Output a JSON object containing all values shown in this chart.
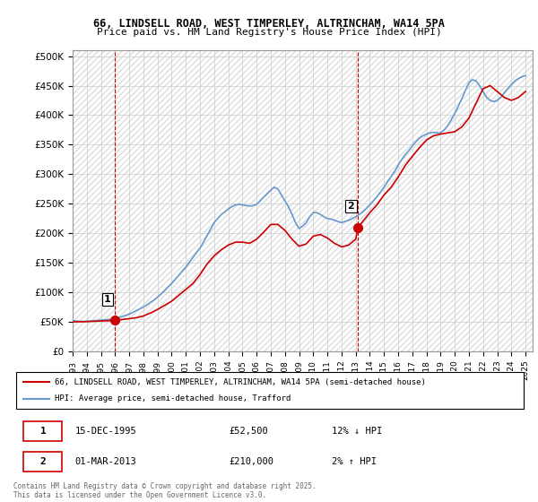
{
  "title_line1": "66, LINDSELL ROAD, WEST TIMPERLEY, ALTRINCHAM, WA14 5PA",
  "title_line2": "Price paid vs. HM Land Registry's House Price Index (HPI)",
  "ylabel_ticks": [
    "£0",
    "£50K",
    "£100K",
    "£150K",
    "£200K",
    "£250K",
    "£300K",
    "£350K",
    "£400K",
    "£450K",
    "£500K"
  ],
  "ytick_values": [
    0,
    50000,
    100000,
    150000,
    200000,
    250000,
    300000,
    350000,
    400000,
    450000,
    500000
  ],
  "ylim": [
    0,
    510000
  ],
  "xlim_start": 1993.0,
  "xlim_end": 2025.5,
  "xtick_years": [
    1993,
    1994,
    1995,
    1996,
    1997,
    1998,
    1999,
    2000,
    2001,
    2002,
    2003,
    2004,
    2005,
    2006,
    2007,
    2008,
    2009,
    2010,
    2011,
    2012,
    2013,
    2014,
    2015,
    2016,
    2017,
    2018,
    2019,
    2020,
    2021,
    2022,
    2023,
    2024,
    2025
  ],
  "sale1_x": 1995.958,
  "sale1_y": 52500,
  "sale1_label": "1",
  "sale2_x": 2013.167,
  "sale2_y": 210000,
  "sale2_label": "2",
  "marker_color": "#cc0000",
  "hpi_color": "#6699cc",
  "price_color": "#cc0000",
  "background_color": "#ffffff",
  "grid_color": "#cccccc",
  "legend_line1": "66, LINDSELL ROAD, WEST TIMPERLEY, ALTRINCHAM, WA14 5PA (semi-detached house)",
  "legend_line2": "HPI: Average price, semi-detached house, Trafford",
  "table_row1": [
    "1",
    "15-DEC-1995",
    "£52,500",
    "12% ↓ HPI"
  ],
  "table_row2": [
    "2",
    "01-MAR-2013",
    "£210,000",
    "2% ↑ HPI"
  ],
  "footer": "Contains HM Land Registry data © Crown copyright and database right 2025.\nThis data is licensed under the Open Government Licence v3.0.",
  "hpi_data_x": [
    1993.0,
    1993.25,
    1993.5,
    1993.75,
    1994.0,
    1994.25,
    1994.5,
    1994.75,
    1995.0,
    1995.25,
    1995.5,
    1995.75,
    1996.0,
    1996.25,
    1996.5,
    1996.75,
    1997.0,
    1997.25,
    1997.5,
    1997.75,
    1998.0,
    1998.25,
    1998.5,
    1998.75,
    1999.0,
    1999.25,
    1999.5,
    1999.75,
    2000.0,
    2000.25,
    2000.5,
    2000.75,
    2001.0,
    2001.25,
    2001.5,
    2001.75,
    2002.0,
    2002.25,
    2002.5,
    2002.75,
    2003.0,
    2003.25,
    2003.5,
    2003.75,
    2004.0,
    2004.25,
    2004.5,
    2004.75,
    2005.0,
    2005.25,
    2005.5,
    2005.75,
    2006.0,
    2006.25,
    2006.5,
    2006.75,
    2007.0,
    2007.25,
    2007.5,
    2007.75,
    2008.0,
    2008.25,
    2008.5,
    2008.75,
    2009.0,
    2009.25,
    2009.5,
    2009.75,
    2010.0,
    2010.25,
    2010.5,
    2010.75,
    2011.0,
    2011.25,
    2011.5,
    2011.75,
    2012.0,
    2012.25,
    2012.5,
    2012.75,
    2013.0,
    2013.25,
    2013.5,
    2013.75,
    2014.0,
    2014.25,
    2014.5,
    2014.75,
    2015.0,
    2015.25,
    2015.5,
    2015.75,
    2016.0,
    2016.25,
    2016.5,
    2016.75,
    2017.0,
    2017.25,
    2017.5,
    2017.75,
    2018.0,
    2018.25,
    2018.5,
    2018.75,
    2019.0,
    2019.25,
    2019.5,
    2019.75,
    2020.0,
    2020.25,
    2020.5,
    2020.75,
    2021.0,
    2021.25,
    2021.5,
    2021.75,
    2022.0,
    2022.25,
    2022.5,
    2022.75,
    2023.0,
    2023.25,
    2023.5,
    2023.75,
    2024.0,
    2024.25,
    2024.5,
    2024.75,
    2025.0
  ],
  "hpi_data_y": [
    52000,
    51500,
    51000,
    50800,
    51000,
    51500,
    52000,
    52500,
    53000,
    53500,
    54000,
    54500,
    55000,
    57000,
    59000,
    61000,
    63000,
    66000,
    69000,
    72000,
    75000,
    79000,
    83000,
    87000,
    92000,
    97000,
    103000,
    109000,
    115000,
    122000,
    129000,
    136000,
    143000,
    151000,
    159000,
    167000,
    175000,
    185000,
    196000,
    207000,
    218000,
    225000,
    232000,
    236000,
    241000,
    245000,
    248000,
    249000,
    248000,
    247000,
    246000,
    247000,
    249000,
    255000,
    261000,
    267000,
    273000,
    278000,
    275000,
    265000,
    255000,
    245000,
    232000,
    218000,
    208000,
    212000,
    218000,
    228000,
    235000,
    235000,
    232000,
    228000,
    225000,
    224000,
    222000,
    220000,
    218000,
    220000,
    222000,
    225000,
    228000,
    232000,
    236000,
    242000,
    248000,
    255000,
    262000,
    270000,
    278000,
    287000,
    296000,
    305000,
    315000,
    325000,
    333000,
    340000,
    348000,
    355000,
    361000,
    365000,
    368000,
    370000,
    371000,
    370000,
    370000,
    375000,
    382000,
    392000,
    403000,
    415000,
    428000,
    442000,
    455000,
    460000,
    458000,
    450000,
    440000,
    430000,
    425000,
    423000,
    425000,
    430000,
    438000,
    445000,
    452000,
    458000,
    462000,
    465000,
    467000
  ],
  "price_data_x": [
    1993.0,
    1993.5,
    1994.0,
    1994.5,
    1995.0,
    1995.5,
    1995.958,
    1996.5,
    1997.0,
    1997.5,
    1998.0,
    1998.5,
    1999.0,
    1999.5,
    2000.0,
    2000.5,
    2001.0,
    2001.5,
    2002.0,
    2002.5,
    2003.0,
    2003.5,
    2004.0,
    2004.5,
    2005.0,
    2005.5,
    2006.0,
    2006.5,
    2007.0,
    2007.5,
    2008.0,
    2008.5,
    2009.0,
    2009.5,
    2010.0,
    2010.5,
    2011.0,
    2011.5,
    2012.0,
    2012.5,
    2013.0,
    2013.167,
    2013.5,
    2014.0,
    2014.5,
    2015.0,
    2015.5,
    2016.0,
    2016.5,
    2017.0,
    2017.5,
    2018.0,
    2018.5,
    2019.0,
    2019.5,
    2020.0,
    2020.5,
    2021.0,
    2021.5,
    2022.0,
    2022.5,
    2023.0,
    2023.5,
    2024.0,
    2024.5,
    2025.0
  ],
  "price_data_y": [
    50000,
    50200,
    50500,
    51000,
    51500,
    52000,
    52500,
    54000,
    55500,
    57000,
    60000,
    65000,
    71000,
    78000,
    85000,
    95000,
    105000,
    115000,
    130000,
    148000,
    162000,
    172000,
    180000,
    185000,
    185000,
    183000,
    190000,
    202000,
    215000,
    215000,
    205000,
    190000,
    178000,
    182000,
    195000,
    198000,
    192000,
    183000,
    177000,
    180000,
    190000,
    210000,
    220000,
    235000,
    248000,
    265000,
    278000,
    295000,
    315000,
    330000,
    345000,
    358000,
    365000,
    368000,
    370000,
    372000,
    380000,
    395000,
    420000,
    445000,
    450000,
    440000,
    430000,
    425000,
    430000,
    440000
  ]
}
